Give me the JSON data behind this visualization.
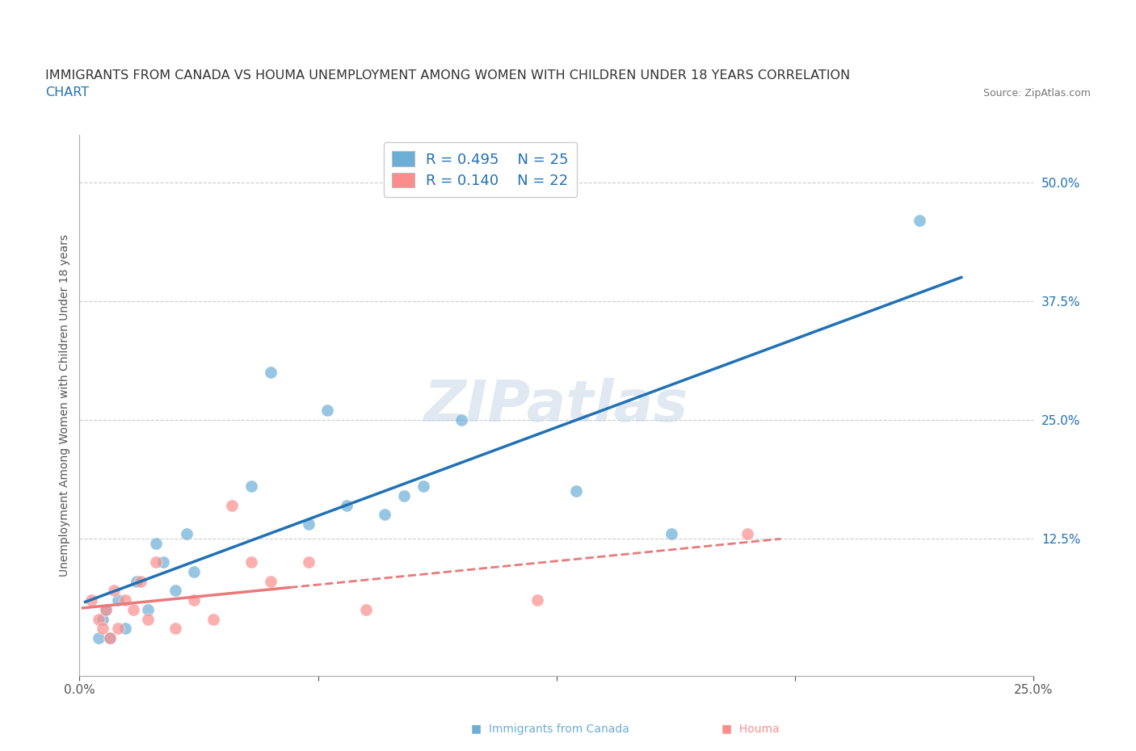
{
  "title_line1": "IMMIGRANTS FROM CANADA VS HOUMA UNEMPLOYMENT AMONG WOMEN WITH CHILDREN UNDER 18 YEARS CORRELATION",
  "title_line2": "CHART",
  "source": "Source: ZipAtlas.com",
  "ylabel": "Unemployment Among Women with Children Under 18 years",
  "xlim": [
    0.0,
    0.25
  ],
  "ylim": [
    -0.02,
    0.55
  ],
  "xticks": [
    0.0,
    0.0625,
    0.125,
    0.1875,
    0.25
  ],
  "ytick_right": [
    0.0,
    0.125,
    0.25,
    0.375,
    0.5
  ],
  "ytick_right_labels": [
    "",
    "12.5%",
    "25.0%",
    "37.5%",
    "50.0%"
  ],
  "blue_R": "0.495",
  "blue_N": "25",
  "pink_R": "0.140",
  "pink_N": "22",
  "blue_color": "#6baed6",
  "pink_color": "#fc8d8d",
  "blue_line_color": "#2171b5",
  "pink_line_color": "#e87a7a",
  "background_color": "#ffffff",
  "grid_color": "#cccccc",
  "title_color": "#333333",
  "label_color": "#2171b5",
  "watermark": "ZIPatlas",
  "blue_scatter_x": [
    0.005,
    0.006,
    0.007,
    0.008,
    0.01,
    0.012,
    0.015,
    0.018,
    0.02,
    0.022,
    0.025,
    0.028,
    0.03,
    0.045,
    0.05,
    0.06,
    0.065,
    0.07,
    0.08,
    0.085,
    0.09,
    0.1,
    0.13,
    0.155,
    0.22
  ],
  "blue_scatter_y": [
    0.02,
    0.04,
    0.05,
    0.02,
    0.06,
    0.03,
    0.08,
    0.05,
    0.12,
    0.1,
    0.07,
    0.13,
    0.09,
    0.18,
    0.3,
    0.14,
    0.26,
    0.16,
    0.15,
    0.17,
    0.18,
    0.25,
    0.175,
    0.13,
    0.46
  ],
  "pink_scatter_x": [
    0.003,
    0.005,
    0.006,
    0.007,
    0.008,
    0.009,
    0.01,
    0.012,
    0.014,
    0.016,
    0.018,
    0.02,
    0.025,
    0.03,
    0.035,
    0.04,
    0.045,
    0.05,
    0.06,
    0.075,
    0.12,
    0.175
  ],
  "pink_scatter_y": [
    0.06,
    0.04,
    0.03,
    0.05,
    0.02,
    0.07,
    0.03,
    0.06,
    0.05,
    0.08,
    0.04,
    0.1,
    0.03,
    0.06,
    0.04,
    0.16,
    0.1,
    0.08,
    0.1,
    0.05,
    0.06,
    0.13
  ]
}
